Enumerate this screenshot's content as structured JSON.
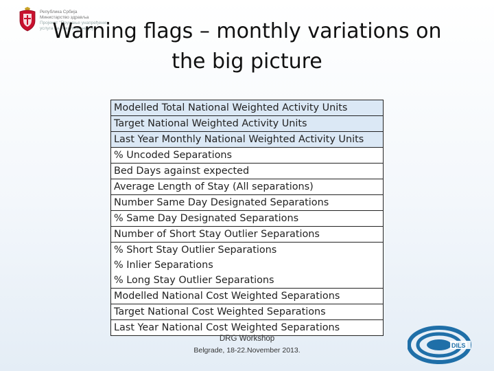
{
  "header": {
    "ministry_lines": [
      "Република Србија",
      "Министарство здравља",
      "Пројекат \"Пружање унапређених",
      "услуга на локалном нивоу\""
    ],
    "title_line1": "Warning flags – monthly variations on",
    "title_line2": "the big picture"
  },
  "table": {
    "rows": [
      "Modelled Total  National Weighted Activity Units",
      "Target  National Weighted Activity Units",
      "Last Year Monthly  National Weighted Activity Units",
      "% Uncoded Separations",
      "Bed Days against expected",
      "Average Length of Stay (All separations)",
      "Number Same Day Designated Separations",
      "% Same Day Designated Separations",
      "Number of Short Stay Outlier Separations",
      "% Short   Stay  Outlier  Separations",
      "% Inlier Separations",
      "% Long Stay Outlier Separations",
      "Modelled  National  Cost Weighted Separations",
      "Target  National Cost Weighted Separations",
      "Last Year  National  Cost Weighted Separations"
    ]
  },
  "footer": {
    "event": "DRG Workshop",
    "dates": "Belgrade, 18-22.November 2013."
  },
  "branding": {
    "logo_text": "DILS",
    "logo_color": "#1f6fa8",
    "shade_color": "#dbe8f5"
  }
}
